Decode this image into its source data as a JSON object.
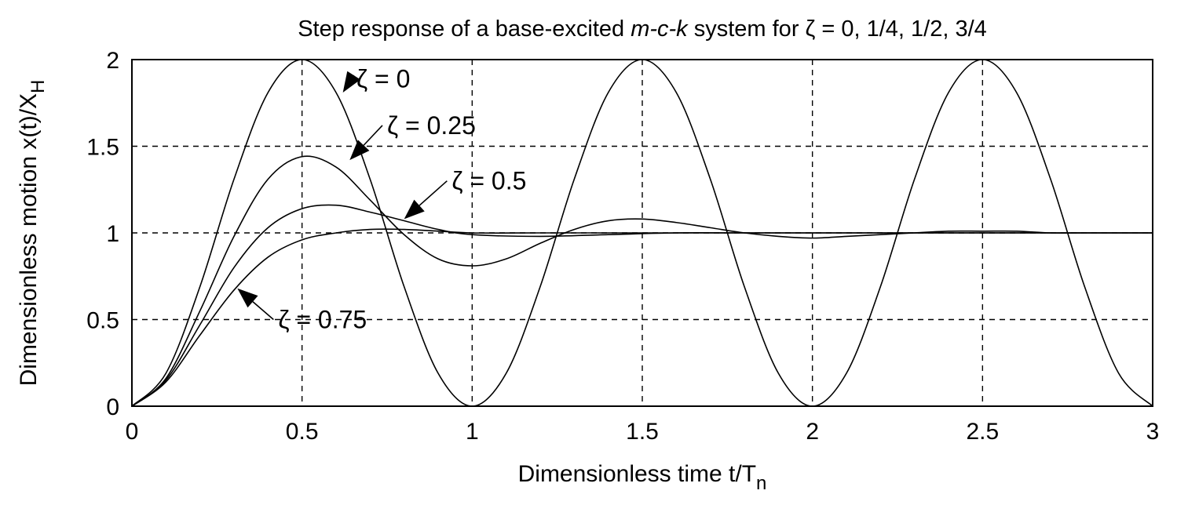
{
  "chart_data": {
    "type": "line",
    "title_parts": [
      {
        "text": "Step response of a base-excited ",
        "italic": false
      },
      {
        "text": "m-c-k",
        "italic": true
      },
      {
        "text": " system for ζ = 0, 1/4, 1/2, 3/4",
        "italic": false
      }
    ],
    "xlabel": "Dimensionless time t/T",
    "xlabel_sub": "n",
    "ylabel": "Dimensionless motion x(t)/X",
    "ylabel_sub": "H",
    "xlim": [
      0,
      3
    ],
    "ylim": [
      0,
      2
    ],
    "xticks": [
      0,
      0.5,
      1,
      1.5,
      2,
      2.5,
      3
    ],
    "xtick_labels": [
      "0",
      "0.5",
      "1",
      "1.5",
      "2",
      "2.5",
      "3"
    ],
    "yticks": [
      0,
      0.5,
      1,
      1.5,
      2
    ],
    "ytick_labels": [
      "0",
      "0.5",
      "1",
      "1.5",
      "2"
    ],
    "grid": true,
    "series": [
      {
        "zeta": 0,
        "label": "ζ = 0",
        "x": [
          0,
          0.1,
          0.2,
          0.3,
          0.4,
          0.5,
          0.6,
          0.7,
          0.8,
          0.9,
          1.0,
          1.1,
          1.2,
          1.3,
          1.4,
          1.5,
          1.6,
          1.7,
          1.8,
          1.9,
          2.0,
          2.1,
          2.2,
          2.3,
          2.4,
          2.5,
          2.6,
          2.7,
          2.8,
          2.9,
          3.0
        ],
        "y": [
          0,
          0.19,
          0.69,
          1.31,
          1.81,
          2.0,
          1.81,
          1.31,
          0.69,
          0.19,
          0,
          0.19,
          0.69,
          1.31,
          1.81,
          2.0,
          1.81,
          1.31,
          0.69,
          0.19,
          0,
          0.19,
          0.69,
          1.31,
          1.81,
          2.0,
          1.81,
          1.31,
          0.69,
          0.19,
          0
        ]
      },
      {
        "zeta": 0.25,
        "label": "ζ = 0.25",
        "x": [
          0,
          0.1,
          0.2,
          0.3,
          0.4,
          0.5,
          0.6,
          0.7,
          0.8,
          0.9,
          1.0,
          1.1,
          1.2,
          1.3,
          1.4,
          1.5,
          1.6,
          1.7,
          1.8,
          1.9,
          2.0,
          2.1,
          2.2,
          2.3,
          2.4,
          2.5,
          2.6,
          2.7,
          2.8,
          2.9,
          3.0
        ],
        "y": [
          0,
          0.16,
          0.55,
          0.98,
          1.31,
          1.44,
          1.38,
          1.19,
          0.99,
          0.85,
          0.81,
          0.85,
          0.94,
          1.02,
          1.07,
          1.08,
          1.06,
          1.03,
          1.0,
          0.98,
          0.97,
          0.98,
          0.99,
          1.0,
          1.01,
          1.01,
          1.01,
          1.0,
          1.0,
          1.0,
          1.0
        ]
      },
      {
        "zeta": 0.5,
        "label": "ζ = 0.5",
        "x": [
          0,
          0.1,
          0.2,
          0.3,
          0.4,
          0.5,
          0.6,
          0.7,
          0.8,
          0.9,
          1.0,
          1.2,
          1.4,
          1.6,
          1.8,
          2.0,
          2.5,
          3.0
        ],
        "y": [
          0,
          0.15,
          0.47,
          0.8,
          1.03,
          1.14,
          1.16,
          1.12,
          1.07,
          1.02,
          0.99,
          0.98,
          0.99,
          1.0,
          1.0,
          1.0,
          1.0,
          1.0
        ]
      },
      {
        "zeta": 0.75,
        "label": "ζ = 0.75",
        "x": [
          0,
          0.1,
          0.2,
          0.3,
          0.4,
          0.5,
          0.6,
          0.7,
          0.8,
          0.9,
          1.0,
          1.2,
          1.4,
          1.6,
          1.8,
          2.0,
          2.5,
          3.0
        ],
        "y": [
          0,
          0.14,
          0.41,
          0.67,
          0.86,
          0.96,
          1.0,
          1.02,
          1.02,
          1.01,
          1.0,
          1.0,
          1.0,
          1.0,
          1.0,
          1.0,
          1.0,
          1.0
        ]
      }
    ],
    "annotations": [
      {
        "text": "ζ = 0",
        "x": 0.66,
        "y": 1.89,
        "arrow_tip": [
          0.62,
          1.81
        ]
      },
      {
        "text": "ζ = 0.25",
        "x": 0.75,
        "y": 1.62,
        "arrow_tip": [
          0.64,
          1.42
        ]
      },
      {
        "text": "ζ = 0.5",
        "x": 0.94,
        "y": 1.3,
        "arrow_tip": [
          0.8,
          1.08
        ]
      },
      {
        "text": "ζ = 0.75",
        "x": 0.43,
        "y": 0.5,
        "arrow_tip": [
          0.31,
          0.68
        ]
      }
    ]
  }
}
